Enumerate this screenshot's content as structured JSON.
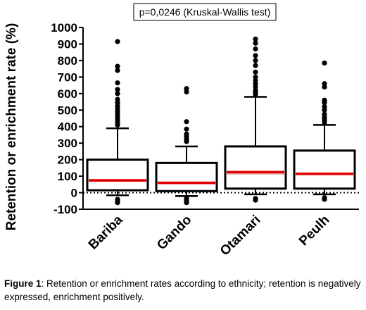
{
  "chart_data": {
    "type": "box",
    "annotation": "p=0,0246 (Kruskal-Wallis test)",
    "ylabel": "Retention or enrichment rate (%)",
    "xlabel": "",
    "ylim": [
      -100,
      1000
    ],
    "yticks": [
      -100,
      0,
      100,
      200,
      300,
      400,
      500,
      600,
      700,
      800,
      900,
      1000
    ],
    "ytick_labels": [
      "-100",
      "0",
      "100",
      "200",
      "300",
      "400",
      "500",
      "600",
      "700",
      "800",
      "900",
      "1000"
    ],
    "reference_line": 0,
    "categories": [
      "Bariba",
      "Gando",
      "Otamari",
      "Peulh"
    ],
    "boxes": [
      {
        "q1": 15,
        "median": 75,
        "mean": 70,
        "q3": 200,
        "whisker_low": -15,
        "whisker_high": 390,
        "outliers": [
          -60,
          -50,
          -40,
          410,
          420,
          435,
          450,
          465,
          480,
          495,
          510,
          525,
          545,
          565,
          600,
          625,
          665,
          740,
          765,
          915
        ]
      },
      {
        "q1": 10,
        "median": 60,
        "mean": 55,
        "q3": 180,
        "whisker_low": -20,
        "whisker_high": 280,
        "outliers": [
          -60,
          -55,
          -45,
          -35,
          310,
          325,
          340,
          355,
          385,
          430,
          610,
          630
        ]
      },
      {
        "q1": 25,
        "median": 125,
        "mean": 115,
        "q3": 280,
        "whisker_low": -10,
        "whisker_high": 580,
        "outliers": [
          -45,
          -35,
          595,
          605,
          620,
          640,
          660,
          680,
          700,
          730,
          770,
          800,
          830,
          870,
          905,
          930
        ]
      },
      {
        "q1": 25,
        "median": 115,
        "mean": 110,
        "q3": 255,
        "whisker_low": -10,
        "whisker_high": 410,
        "outliers": [
          -40,
          -30,
          425,
          440,
          455,
          475,
          500,
          520,
          545,
          560,
          640,
          660,
          785
        ]
      }
    ]
  },
  "caption": {
    "label": "Figure 1",
    "text": ": Retention or enrichment rates according to ethnicity; retention is negatively expressed, enrichment positively."
  }
}
